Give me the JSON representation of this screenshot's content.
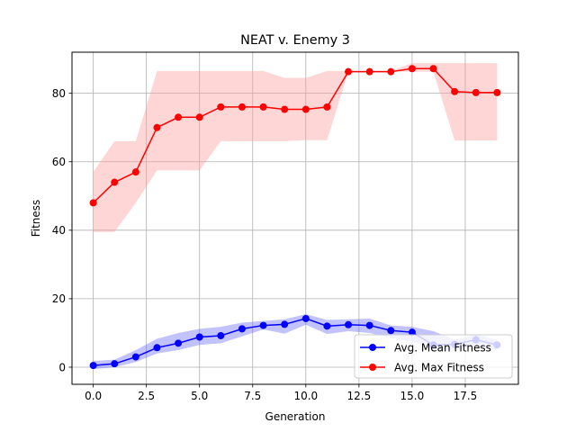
{
  "chart_data": {
    "type": "line",
    "title": "NEAT v. Enemy 3",
    "xlabel": "Generation",
    "ylabel": "Fitness",
    "xlim": [
      -1,
      20
    ],
    "ylim": [
      -5,
      92
    ],
    "x_ticks": [
      0,
      2.5,
      5,
      7.5,
      10,
      12.5,
      15,
      17.5
    ],
    "x_tick_labels": [
      "0.0",
      "2.5",
      "5.0",
      "7.5",
      "10.0",
      "12.5",
      "15.0",
      "17.5"
    ],
    "y_ticks": [
      0,
      20,
      40,
      60,
      80
    ],
    "y_tick_labels": [
      "0",
      "20",
      "40",
      "60",
      "80"
    ],
    "grid": true,
    "legend_position": "lower-right",
    "x": [
      0,
      1,
      2,
      3,
      4,
      5,
      6,
      7,
      8,
      9,
      10,
      11,
      12,
      13,
      14,
      15,
      16,
      17,
      18,
      19
    ],
    "series": [
      {
        "name": "Avg. Mean Fitness",
        "color": "#0000ff",
        "band_color": "#6666ff",
        "values": [
          0.5,
          1.0,
          3.0,
          5.7,
          7.0,
          8.8,
          9.2,
          11.2,
          12.2,
          12.5,
          14.2,
          12.0,
          12.4,
          12.2,
          10.7,
          10.2,
          6.5,
          6.7,
          8.0,
          6.5
        ],
        "lower": [
          -0.6,
          0.0,
          1.5,
          4.0,
          5.0,
          6.5,
          7.0,
          9.0,
          11.0,
          9.8,
          12.4,
          9.7,
          10.5,
          10.0,
          8.5,
          7.5,
          5.0,
          5.0,
          6.2,
          5.0
        ],
        "upper": [
          1.8,
          2.2,
          5.0,
          8.3,
          10.0,
          11.2,
          11.8,
          13.0,
          13.5,
          14.0,
          15.5,
          13.8,
          14.0,
          14.2,
          12.2,
          11.8,
          10.5,
          8.0,
          9.5,
          8.0
        ]
      },
      {
        "name": "Avg. Max Fitness",
        "color": "#ff0000",
        "band_color": "#ff9999",
        "values": [
          48.0,
          54.0,
          57.0,
          70.0,
          73.0,
          73.0,
          76.0,
          76.0,
          76.0,
          75.3,
          75.3,
          76.0,
          86.3,
          86.3,
          86.3,
          87.2,
          87.2,
          80.5,
          80.2,
          80.2
        ],
        "lower": [
          39.5,
          39.5,
          48.0,
          57.5,
          57.5,
          57.5,
          66.0,
          66.0,
          66.0,
          66.0,
          66.3,
          66.3,
          86.3,
          86.3,
          86.3,
          86.3,
          86.3,
          66.2,
          66.2,
          66.2
        ],
        "upper": [
          57.0,
          66.0,
          66.0,
          86.5,
          86.5,
          86.5,
          86.5,
          86.5,
          86.5,
          84.5,
          84.5,
          86.5,
          86.5,
          86.5,
          86.5,
          88.8,
          88.8,
          88.8,
          88.8,
          88.8
        ]
      }
    ]
  }
}
